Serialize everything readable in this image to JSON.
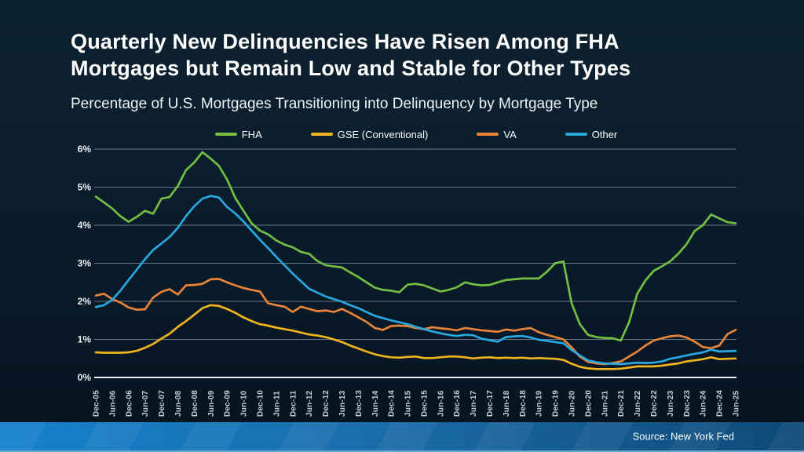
{
  "slide": {
    "title_lines": [
      "Quarterly New Delinquencies Have Risen Among FHA",
      "Mortgages but Remain Low and Stable for Other Types"
    ],
    "subtitle": "Percentage of U.S. Mortgages Transitioning into Delinquency by Mortgage Type",
    "source": "Source: New York Fed"
  },
  "style": {
    "bg_top": "#0d2230",
    "bg_mid": "#0a1c2b",
    "bg_bottom": "#061320",
    "banner_left": "#1582cd",
    "banner_mid": "#1b6dab",
    "banner_right": "#0e4977",
    "banner_edge": "#6aa9cf",
    "text_primary": "#ffffff",
    "tick_color": "#c6cdd4"
  },
  "chart_data": {
    "type": "line",
    "title": "Percentage of U.S. Mortgages Transitioning into Delinquency by Mortgage Type",
    "xlabel": "",
    "ylabel": "",
    "ylim": [
      0,
      6
    ],
    "y_tick_labels": [
      "0%",
      "1%",
      "2%",
      "3%",
      "4%",
      "5%",
      "6%"
    ],
    "grid": "horizontal",
    "grid_color": "rgba(198,208,216,0.5)",
    "zero_line_color": "#e4ebf1",
    "legend_position": "top",
    "x_label_every_n_points": 2,
    "x_labels": [
      "Dec-05",
      "Jun-06",
      "Dec-06",
      "Jun-07",
      "Dec-07",
      "Jun-08",
      "Dec-08",
      "Jun-09",
      "Dec-09",
      "Jun-10",
      "Dec-10",
      "Jun-11",
      "Dec-11",
      "Jun-12",
      "Dec-12",
      "Jun-13",
      "Dec-13",
      "Jun-14",
      "Dec-14",
      "Jun-15",
      "Dec-15",
      "Jun-16",
      "Dec-16",
      "Jun-17",
      "Dec-17",
      "Jun-18",
      "Dec-18",
      "Jun-19",
      "Dec-19",
      "Jun-20",
      "Dec-20",
      "Jun-21",
      "Dec-21",
      "Jun-22",
      "Dec-22",
      "Jun-23",
      "Dec-23",
      "Jun-24",
      "Dec-24",
      "Jun-25"
    ],
    "series": [
      {
        "name": "FHA",
        "color": "#72BF44",
        "values": [
          4.75,
          4.6,
          4.44,
          4.24,
          4.09,
          4.22,
          4.38,
          4.3,
          4.7,
          4.74,
          5.03,
          5.45,
          5.65,
          5.92,
          5.75,
          5.56,
          5.2,
          4.72,
          4.38,
          4.05,
          3.86,
          3.76,
          3.6,
          3.49,
          3.42,
          3.3,
          3.25,
          3.06,
          2.95,
          2.92,
          2.89,
          2.76,
          2.64,
          2.5,
          2.36,
          2.3,
          2.28,
          2.24,
          2.44,
          2.46,
          2.42,
          2.34,
          2.26,
          2.3,
          2.37,
          2.5,
          2.45,
          2.42,
          2.43,
          2.5,
          2.56,
          2.58,
          2.6,
          2.6,
          2.6,
          2.78,
          3.0,
          3.05,
          1.95,
          1.4,
          1.12,
          1.06,
          1.04,
          1.03,
          0.97,
          1.45,
          2.2,
          2.55,
          2.8,
          2.92,
          3.05,
          3.25,
          3.5,
          3.85,
          4.0,
          4.28,
          4.18,
          4.08,
          4.05
        ]
      },
      {
        "name": "GSE (Conventional)",
        "color": "#F0B41E",
        "values": [
          0.66,
          0.65,
          0.65,
          0.65,
          0.66,
          0.7,
          0.78,
          0.88,
          1.02,
          1.15,
          1.33,
          1.48,
          1.65,
          1.82,
          1.9,
          1.88,
          1.8,
          1.7,
          1.58,
          1.48,
          1.4,
          1.36,
          1.31,
          1.27,
          1.23,
          1.18,
          1.13,
          1.1,
          1.06,
          1.0,
          0.93,
          0.84,
          0.76,
          0.68,
          0.61,
          0.56,
          0.53,
          0.52,
          0.54,
          0.55,
          0.51,
          0.51,
          0.53,
          0.55,
          0.55,
          0.53,
          0.5,
          0.52,
          0.53,
          0.51,
          0.52,
          0.51,
          0.52,
          0.5,
          0.51,
          0.5,
          0.49,
          0.46,
          0.36,
          0.28,
          0.24,
          0.22,
          0.22,
          0.22,
          0.23,
          0.26,
          0.29,
          0.29,
          0.29,
          0.31,
          0.34,
          0.37,
          0.42,
          0.45,
          0.48,
          0.53,
          0.48,
          0.49,
          0.5
        ]
      },
      {
        "name": "VA",
        "color": "#E8833A",
        "values": [
          2.15,
          2.2,
          2.06,
          1.97,
          1.84,
          1.78,
          1.79,
          2.1,
          2.25,
          2.32,
          2.18,
          2.42,
          2.43,
          2.46,
          2.58,
          2.59,
          2.5,
          2.42,
          2.35,
          2.3,
          2.26,
          1.95,
          1.9,
          1.86,
          1.72,
          1.86,
          1.8,
          1.74,
          1.76,
          1.72,
          1.8,
          1.7,
          1.58,
          1.46,
          1.3,
          1.25,
          1.35,
          1.36,
          1.35,
          1.3,
          1.27,
          1.32,
          1.29,
          1.27,
          1.24,
          1.3,
          1.27,
          1.24,
          1.22,
          1.2,
          1.26,
          1.23,
          1.27,
          1.3,
          1.19,
          1.12,
          1.06,
          1.0,
          0.79,
          0.55,
          0.41,
          0.37,
          0.35,
          0.38,
          0.42,
          0.55,
          0.68,
          0.84,
          0.97,
          1.03,
          1.08,
          1.1,
          1.05,
          0.94,
          0.8,
          0.77,
          0.84,
          1.14,
          1.25
        ]
      },
      {
        "name": "Other",
        "color": "#29A8E0",
        "values": [
          1.85,
          1.9,
          2.04,
          2.28,
          2.56,
          2.83,
          3.11,
          3.35,
          3.52,
          3.69,
          3.93,
          4.24,
          4.5,
          4.7,
          4.77,
          4.73,
          4.48,
          4.31,
          4.1,
          3.86,
          3.62,
          3.4,
          3.17,
          2.95,
          2.73,
          2.53,
          2.33,
          2.23,
          2.13,
          2.06,
          1.99,
          1.9,
          1.82,
          1.72,
          1.62,
          1.56,
          1.5,
          1.45,
          1.4,
          1.33,
          1.27,
          1.21,
          1.16,
          1.12,
          1.09,
          1.12,
          1.11,
          1.02,
          0.98,
          0.94,
          1.06,
          1.08,
          1.09,
          1.05,
          0.99,
          0.96,
          0.93,
          0.9,
          0.72,
          0.58,
          0.45,
          0.4,
          0.37,
          0.36,
          0.35,
          0.37,
          0.39,
          0.38,
          0.39,
          0.42,
          0.49,
          0.53,
          0.58,
          0.62,
          0.66,
          0.73,
          0.68,
          0.69,
          0.7
        ]
      }
    ]
  }
}
